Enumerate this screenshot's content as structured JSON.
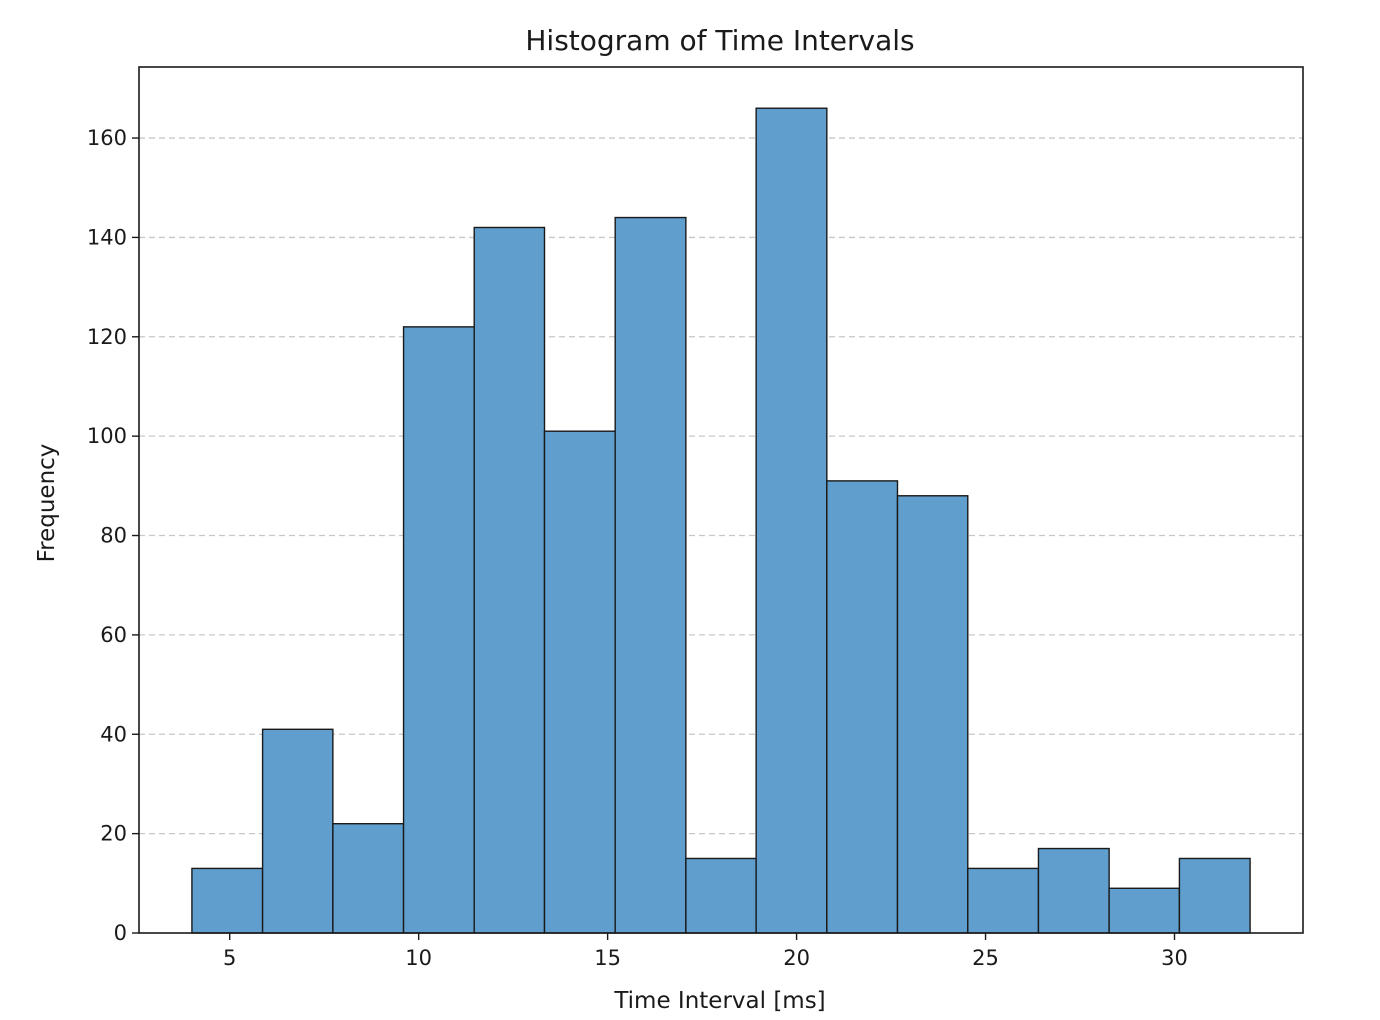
{
  "chart_data": {
    "type": "bar",
    "subtype": "histogram",
    "title": "Histogram of Time Intervals",
    "xlabel": "Time Interval [ms]",
    "ylabel": "Frequency",
    "bin_edges": [
      4.0,
      5.87,
      7.73,
      9.6,
      11.47,
      13.33,
      15.2,
      17.07,
      18.93,
      20.8,
      22.67,
      24.53,
      26.4,
      28.27,
      30.13,
      32.0
    ],
    "values": [
      13,
      41,
      22,
      122,
      142,
      101,
      144,
      15,
      166,
      91,
      88,
      13,
      17,
      9,
      15
    ],
    "xlim": [
      2.6,
      33.4
    ],
    "ylim": [
      0,
      174.3
    ],
    "xticks": [
      5,
      10,
      15,
      20,
      25,
      30
    ],
    "yticks": [
      0,
      20,
      40,
      60,
      80,
      100,
      120,
      140,
      160
    ],
    "grid": {
      "y": true,
      "x": false,
      "style": "dashed"
    },
    "colors": {
      "bar_fill": "#5f9ecd",
      "bar_edge": "#1a1a1a",
      "grid": "#c8c8c8"
    },
    "legend": "none"
  }
}
